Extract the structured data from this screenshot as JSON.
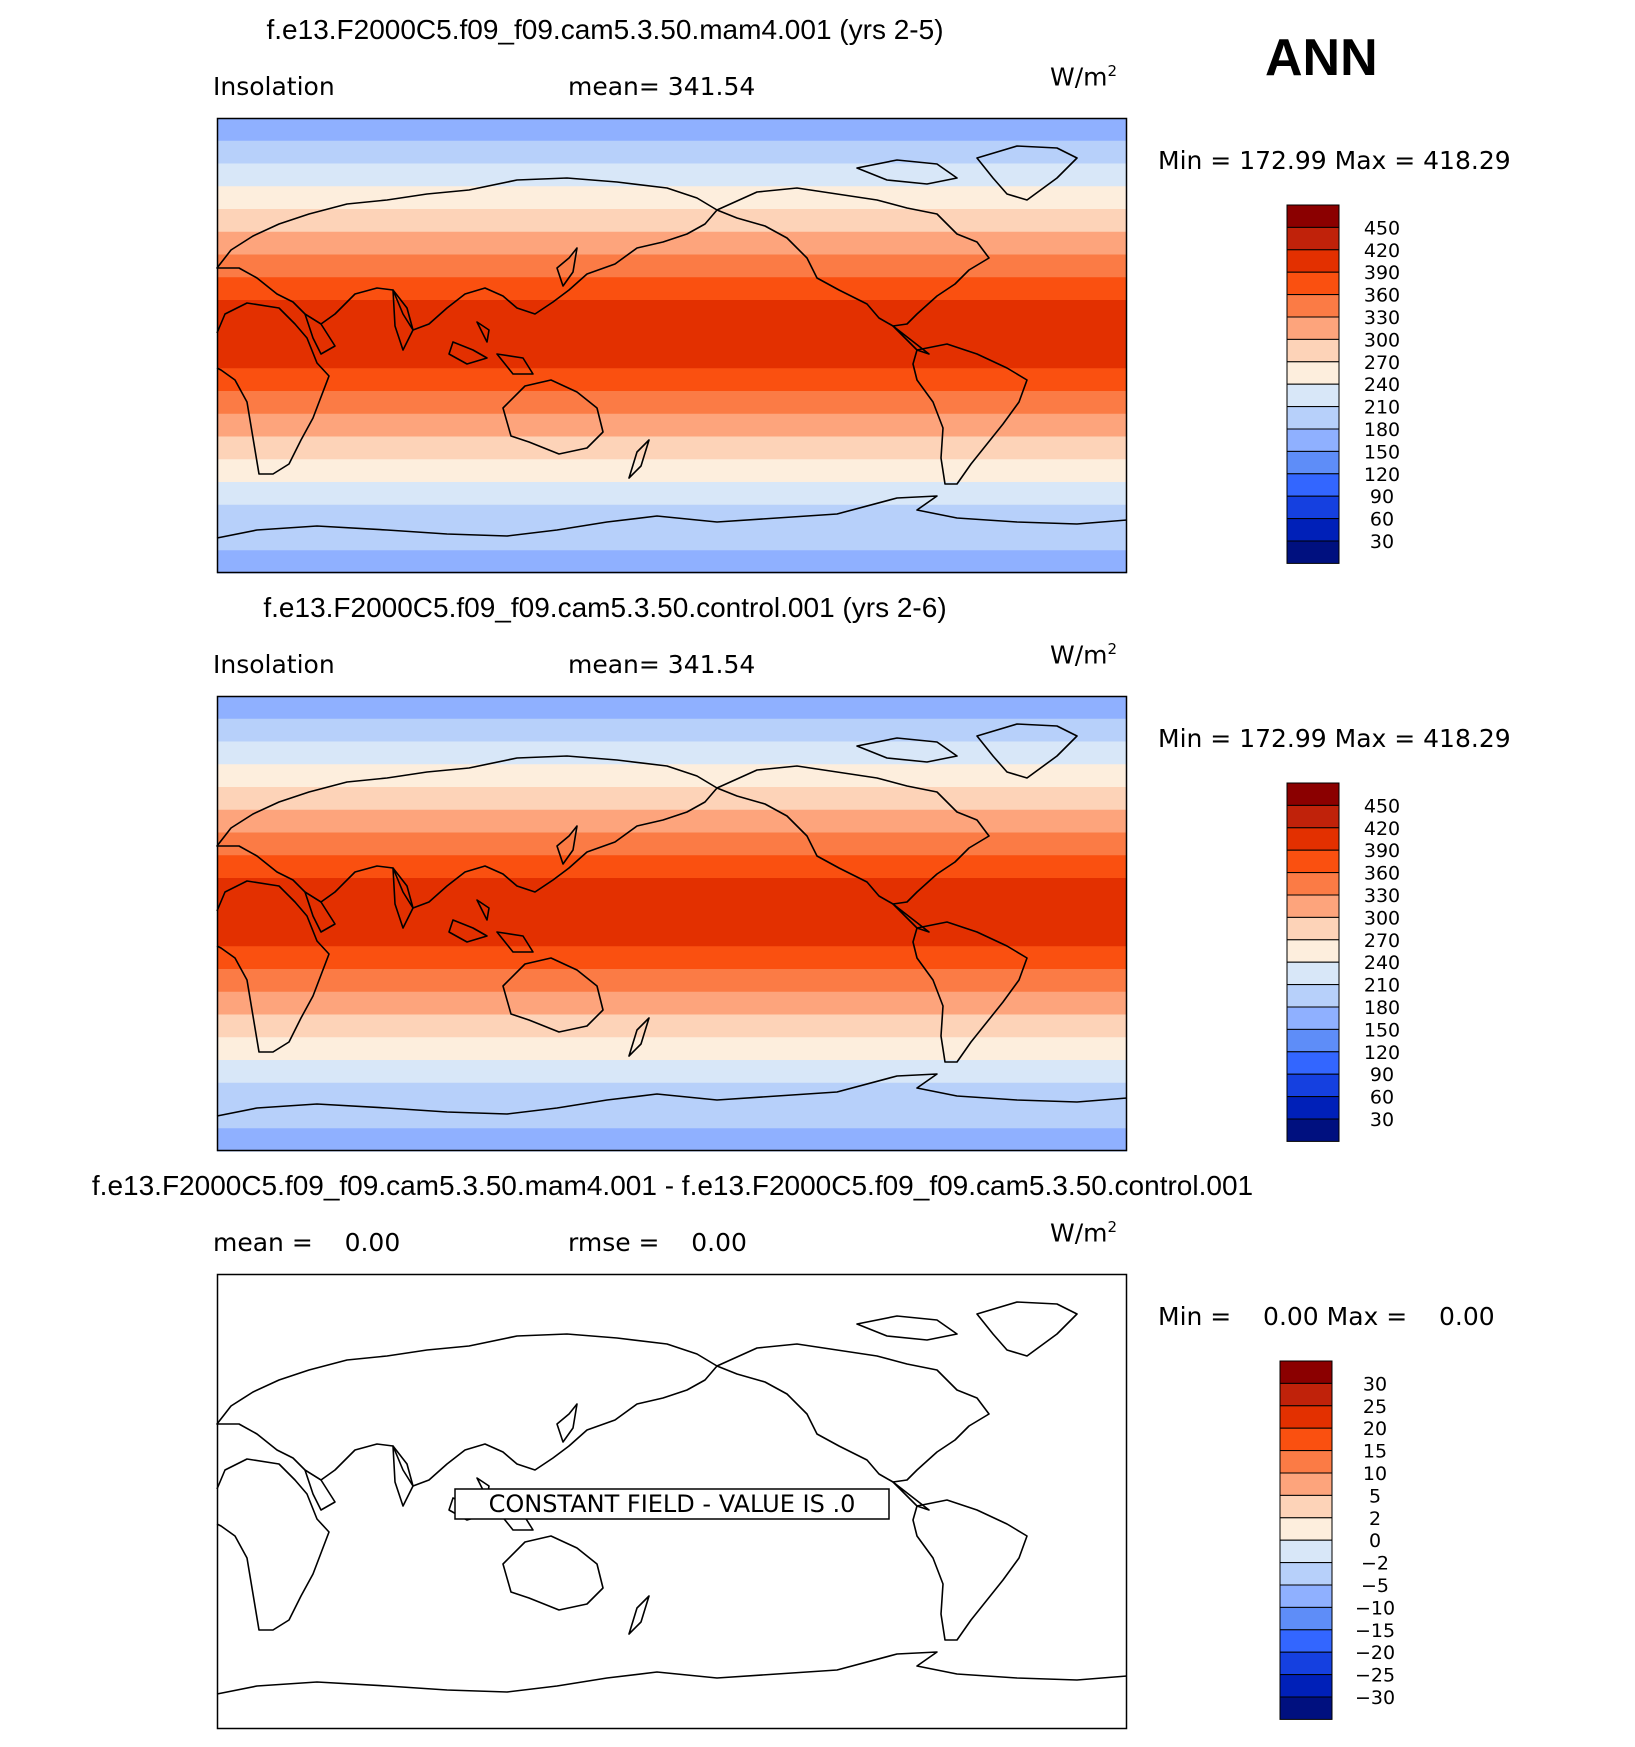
{
  "season": "ANN",
  "panels": [
    {
      "title": "f.e13.F2000C5.f09_f09.cam5.3.50.mam4.001 (yrs 2-5)",
      "left_label": "Insolation",
      "center_label": "mean= 341.54",
      "units": "W/m",
      "units_sup": "2",
      "minmax": "Min = 172.99 Max = 418.29"
    },
    {
      "title": "f.e13.F2000C5.f09_f09.cam5.3.50.control.001 (yrs 2-6)",
      "left_label": "Insolation",
      "center_label": "mean= 341.54",
      "units": "W/m",
      "units_sup": "2",
      "minmax": "Min = 172.99 Max = 418.29"
    },
    {
      "title": "f.e13.F2000C5.f09_f09.cam5.3.50.mam4.001 - f.e13.F2000C5.f09_f09.cam5.3.50.control.001",
      "left_label": "mean =    0.00",
      "center_label": "rmse =    0.00",
      "units": "W/m",
      "units_sup": "2",
      "minmax": "Min =    0.00 Max =    0.00",
      "constant_field_text": "CONSTANT FIELD - VALUE IS .0"
    }
  ],
  "chart_data": [
    {
      "type": "heatmap",
      "title": "f.e13.F2000C5.f09_f09.cam5.3.50.mam4.001 (yrs 2-5)",
      "variable": "Insolation",
      "units": "W/m2",
      "mean": 341.54,
      "min": 172.99,
      "max": 418.29,
      "colorbar_levels": [
        450,
        420,
        390,
        360,
        330,
        300,
        270,
        240,
        210,
        180,
        150,
        120,
        90,
        60,
        30
      ],
      "colorbar_colors": [
        "#8b0000",
        "#c0220a",
        "#e33000",
        "#fa5010",
        "#fb7b45",
        "#fda47c",
        "#fdd3b8",
        "#fdeedd",
        "#d8e7f8",
        "#b7d0fa",
        "#8fb0ff",
        "#5e8df8",
        "#3366ff",
        "#1540e0",
        "#0020b8",
        "#00107f"
      ],
      "zonal_bands_north_to_south": [
        "#8fb0ff",
        "#b7d0fa",
        "#d8e7f8",
        "#fdeedd",
        "#fdd3b8",
        "#fda47c",
        "#fb7b45",
        "#fa5010",
        "#e33000",
        "#e33000",
        "#e33000",
        "#fa5010",
        "#fb7b45",
        "#fda47c",
        "#fdd3b8",
        "#fdeedd",
        "#d8e7f8",
        "#b7d0fa",
        "#b7d0fa",
        "#8fb0ff"
      ]
    },
    {
      "type": "heatmap",
      "title": "f.e13.F2000C5.f09_f09.cam5.3.50.control.001 (yrs 2-6)",
      "variable": "Insolation",
      "units": "W/m2",
      "mean": 341.54,
      "min": 172.99,
      "max": 418.29,
      "colorbar_levels": [
        450,
        420,
        390,
        360,
        330,
        300,
        270,
        240,
        210,
        180,
        150,
        120,
        90,
        60,
        30
      ],
      "colorbar_colors": [
        "#8b0000",
        "#c0220a",
        "#e33000",
        "#fa5010",
        "#fb7b45",
        "#fda47c",
        "#fdd3b8",
        "#fdeedd",
        "#d8e7f8",
        "#b7d0fa",
        "#8fb0ff",
        "#5e8df8",
        "#3366ff",
        "#1540e0",
        "#0020b8",
        "#00107f"
      ],
      "zonal_bands_north_to_south": [
        "#8fb0ff",
        "#b7d0fa",
        "#d8e7f8",
        "#fdeedd",
        "#fdd3b8",
        "#fda47c",
        "#fb7b45",
        "#fa5010",
        "#e33000",
        "#e33000",
        "#e33000",
        "#fa5010",
        "#fb7b45",
        "#fda47c",
        "#fdd3b8",
        "#fdeedd",
        "#d8e7f8",
        "#b7d0fa",
        "#b7d0fa",
        "#8fb0ff"
      ]
    },
    {
      "type": "heatmap",
      "title": "f.e13.F2000C5.f09_f09.cam5.3.50.mam4.001 - f.e13.F2000C5.f09_f09.cam5.3.50.control.001",
      "units": "W/m2",
      "mean": 0.0,
      "rmse": 0.0,
      "min": 0.0,
      "max": 0.0,
      "colorbar_levels": [
        "30",
        "25",
        "20",
        "15",
        "10",
        "5",
        "2",
        "0",
        "−2",
        "−5",
        "−10",
        "−15",
        "−20",
        "−25",
        "−30"
      ],
      "colorbar_colors": [
        "#8b0000",
        "#c0220a",
        "#e33000",
        "#fa5010",
        "#fb7b45",
        "#fda47c",
        "#fdd3b8",
        "#fdeedd",
        "#d8e7f8",
        "#b7d0fa",
        "#8fb0ff",
        "#5e8df8",
        "#3366ff",
        "#1540e0",
        "#0020b8",
        "#00107f"
      ],
      "zonal_bands_north_to_south": []
    }
  ]
}
